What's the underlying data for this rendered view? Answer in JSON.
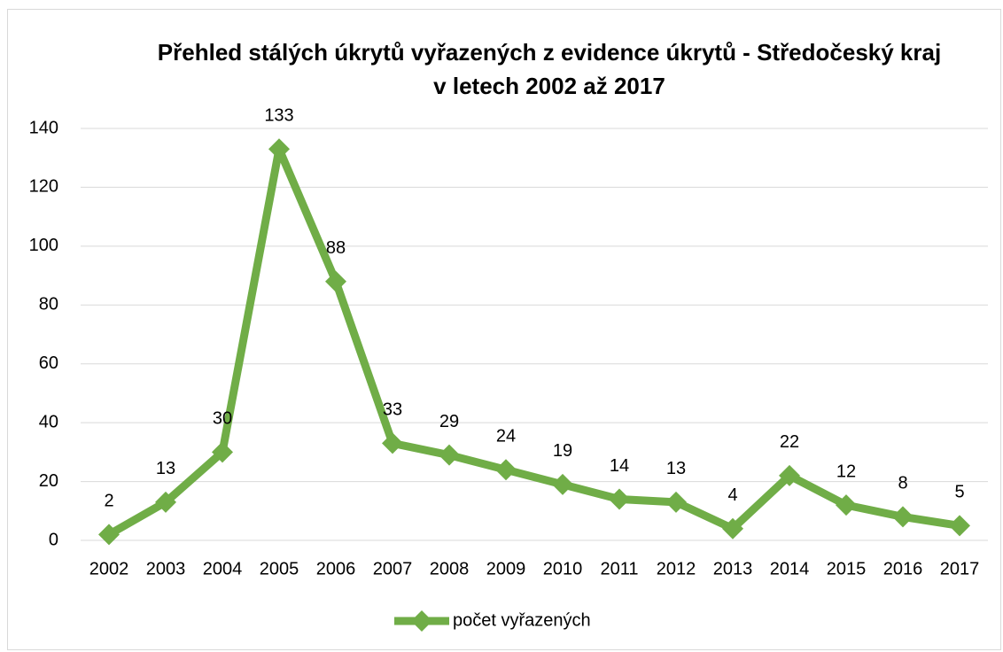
{
  "chart_data": {
    "type": "line",
    "title": "Přehled stálých úkrytů vyřazených z evidence úkrytů - Středočeský kraj v letech 2002 až 2017",
    "categories": [
      "2002",
      "2003",
      "2004",
      "2005",
      "2006",
      "2007",
      "2008",
      "2009",
      "2010",
      "2011",
      "2012",
      "2013",
      "2014",
      "2015",
      "2016",
      "2017"
    ],
    "series": [
      {
        "name": "počet vyřazených",
        "color": "#70ad47",
        "values": [
          2,
          13,
          30,
          133,
          88,
          33,
          29,
          24,
          19,
          14,
          13,
          4,
          22,
          12,
          8,
          5
        ]
      }
    ],
    "ylim": [
      0,
      140
    ],
    "yticks": [
      0,
      20,
      40,
      60,
      80,
      100,
      120,
      140
    ],
    "grid": true,
    "legend": "bottom"
  }
}
